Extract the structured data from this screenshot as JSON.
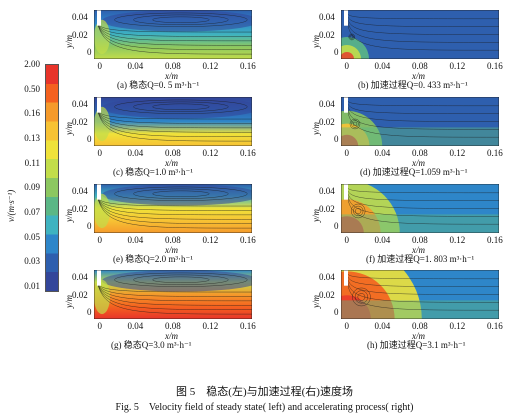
{
  "colorbar": {
    "label": "v/(m·s⁻¹)",
    "ticks": [
      "2.00",
      "0.50",
      "0.16",
      "0.13",
      "0.11",
      "0.09",
      "0.07",
      "0.05",
      "0.03",
      "0.01"
    ],
    "colors": [
      "#e8342a",
      "#f4611f",
      "#f59a2b",
      "#f7c234",
      "#efe23a",
      "#c2dd4a",
      "#8cc760",
      "#5bb786",
      "#3fb3c0",
      "#2e86c9",
      "#2e5fae",
      "#33469a"
    ]
  },
  "panels": [
    {
      "caption": "(a) 稳态Q=0. 5 m³·h⁻¹",
      "x_ticks": [
        "0",
        "0.04",
        "0.08",
        "0.12",
        "0.16"
      ],
      "y_ticks": [
        "0.04",
        "0.02",
        "0"
      ],
      "xlabel": "x/m",
      "ylabel": "y/m"
    },
    {
      "caption": "(b) 加速过程Q=0. 433 m³·h⁻¹",
      "x_ticks": [
        "0",
        "0.04",
        "0.08",
        "0.12",
        "0.16"
      ],
      "y_ticks": [
        "0.04",
        "0.02",
        "0"
      ],
      "xlabel": "x/m",
      "ylabel": "y/m"
    },
    {
      "caption": "(c) 稳态Q=1.0 m³·h⁻¹",
      "x_ticks": [
        "0",
        "0.04",
        "0.08",
        "0.12",
        "0.16"
      ],
      "y_ticks": [
        "0.04",
        "0.02",
        "0"
      ],
      "xlabel": "x/m",
      "ylabel": "y/m"
    },
    {
      "caption": "(d) 加速过程Q=1.059 m³·h⁻¹",
      "x_ticks": [
        "0",
        "0.04",
        "0.08",
        "0.12",
        "0.16"
      ],
      "y_ticks": [
        "0.04",
        "0.02",
        "0"
      ],
      "xlabel": "x/m",
      "ylabel": "y/m"
    },
    {
      "caption": "(e) 稳态Q=2.0 m³·h⁻¹",
      "x_ticks": [
        "0",
        "0.04",
        "0.08",
        "0.12",
        "0.16"
      ],
      "y_ticks": [
        "0.04",
        "0.02",
        "0"
      ],
      "xlabel": "x/m",
      "ylabel": "y/m"
    },
    {
      "caption": "(f) 加速过程Q=1. 803 m³·h⁻¹",
      "x_ticks": [
        "0",
        "0.04",
        "0.08",
        "0.12",
        "0.16"
      ],
      "y_ticks": [
        "0.04",
        "0.02",
        "0"
      ],
      "xlabel": "x/m",
      "ylabel": "y/m"
    },
    {
      "caption": "(g) 稳态Q=3.0 m³·h⁻¹",
      "x_ticks": [
        "0",
        "0.04",
        "0.08",
        "0.12",
        "0.16"
      ],
      "y_ticks": [
        "0.04",
        "0.02",
        "0"
      ],
      "xlabel": "x/m",
      "ylabel": "y/m"
    },
    {
      "caption": "(h) 加速过程Q=3.1 m³·h⁻¹",
      "x_ticks": [
        "0",
        "0.04",
        "0.08",
        "0.12",
        "0.16"
      ],
      "y_ticks": [
        "0.04",
        "0.02",
        "0"
      ],
      "xlabel": "x/m",
      "ylabel": "y/m"
    }
  ],
  "figure": {
    "caption_cn": "图 5　稳态(左)与加速过程(右)速度场",
    "caption_en": "Fig. 5　Velocity field of steady state( left) and accelerating process( right)"
  }
}
